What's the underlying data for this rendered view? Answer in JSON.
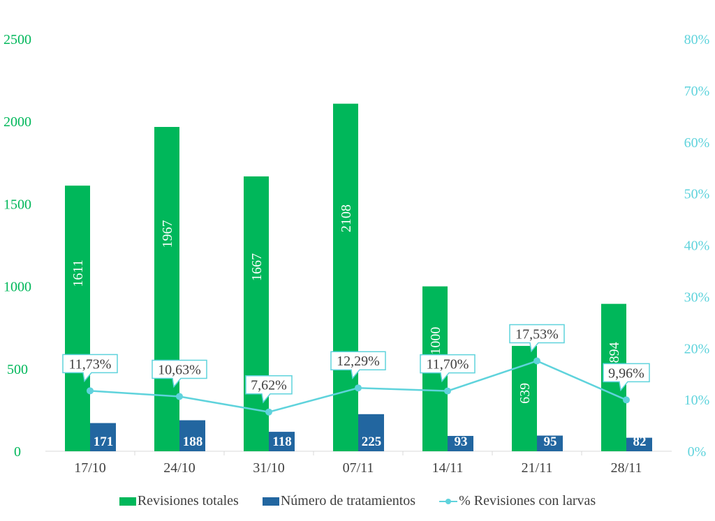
{
  "chart_data": {
    "type": "bar",
    "categories": [
      "17/10",
      "24/10",
      "31/10",
      "07/11",
      "14/11",
      "21/11",
      "28/11"
    ],
    "series": [
      {
        "name": "Revisiones totales",
        "type": "bar",
        "axis": "left",
        "color": "#00b75a",
        "values": [
          1611,
          1967,
          1667,
          2108,
          1000,
          639,
          894
        ],
        "labels": [
          "1611",
          "1967",
          "1667",
          "2108",
          "1000",
          "639",
          "894"
        ]
      },
      {
        "name": "Número de tratamientos",
        "type": "bar",
        "axis": "left",
        "color": "#2266a0",
        "values": [
          171,
          188,
          118,
          225,
          93,
          95,
          82
        ],
        "labels": [
          "171",
          "188",
          "118",
          "225",
          "93",
          "95",
          "82"
        ]
      },
      {
        "name": "% Revisiones con larvas",
        "type": "line",
        "axis": "right",
        "color": "#5fd3dc",
        "values": [
          11.73,
          10.63,
          7.62,
          12.29,
          11.7,
          17.53,
          9.96
        ],
        "labels": [
          "11,73%",
          "10,63%",
          "7,62%",
          "12,29%",
          "11,70%",
          "17,53%",
          "9,96%"
        ]
      }
    ],
    "left_axis": {
      "ylim": [
        0,
        2500
      ],
      "ticks": [
        "0",
        "500",
        "1000",
        "1500",
        "2000",
        "2500"
      ],
      "color": "#00b75a"
    },
    "right_axis": {
      "ylim": [
        0,
        80
      ],
      "ticks": [
        "0%",
        "10%",
        "20%",
        "30%",
        "40%",
        "50%",
        "60%",
        "70%",
        "80%"
      ],
      "color": "#5fd3dc"
    },
    "legend_position": "bottom",
    "grid": false
  }
}
